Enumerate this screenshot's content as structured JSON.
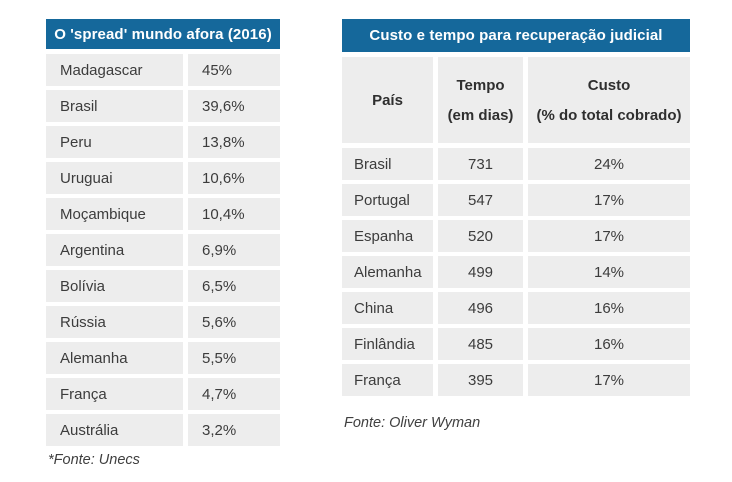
{
  "colors": {
    "header_background": "#15689b",
    "header_text": "#ffffff",
    "row_background": "#ededed",
    "body_text": "#3c3c3c",
    "page_background": "#ffffff"
  },
  "left_table": {
    "title": "O 'spread' mundo afora (2016)",
    "rows": [
      {
        "country": "Madagascar",
        "value": "45%"
      },
      {
        "country": "Brasil",
        "value": "39,6%"
      },
      {
        "country": "Peru",
        "value": "13,8%"
      },
      {
        "country": "Uruguai",
        "value": "10,6%"
      },
      {
        "country": "Moçambique",
        "value": "10,4%"
      },
      {
        "country": "Argentina",
        "value": "6,9%"
      },
      {
        "country": "Bolívia",
        "value": "6,5%"
      },
      {
        "country": "Rússia",
        "value": "5,6%"
      },
      {
        "country": "Alemanha",
        "value": "5,5%"
      },
      {
        "country": "França",
        "value": "4,7%"
      },
      {
        "country": "Austrália",
        "value": "3,2%"
      }
    ],
    "source": "*Fonte: Unecs"
  },
  "right_table": {
    "title": "Custo e tempo para recuperação judicial",
    "columns": {
      "country_header": "País",
      "time_header_line1": "Tempo",
      "time_header_line2": "(em dias)",
      "cost_header_line1": "Custo",
      "cost_header_line2": "(% do total cobrado)"
    },
    "rows": [
      {
        "country": "Brasil",
        "time": "731",
        "cost": "24%"
      },
      {
        "country": "Portugal",
        "time": "547",
        "cost": "17%"
      },
      {
        "country": "Espanha",
        "time": "520",
        "cost": "17%"
      },
      {
        "country": "Alemanha",
        "time": "499",
        "cost": "14%"
      },
      {
        "country": "China",
        "time": "496",
        "cost": "16%"
      },
      {
        "country": "Finlândia",
        "time": "485",
        "cost": "16%"
      },
      {
        "country": "França",
        "time": "395",
        "cost": "17%"
      }
    ],
    "source": "Fonte: Oliver Wyman"
  },
  "chart_data": [
    {
      "type": "table",
      "title": "O 'spread' mundo afora (2016)",
      "categories": [
        "Madagascar",
        "Brasil",
        "Peru",
        "Uruguai",
        "Moçambique",
        "Argentina",
        "Bolívia",
        "Rússia",
        "Alemanha",
        "França",
        "Austrália"
      ],
      "values": [
        45,
        39.6,
        13.8,
        10.6,
        10.4,
        6.9,
        6.5,
        5.6,
        5.5,
        4.7,
        3.2
      ],
      "value_unit": "%",
      "source": "*Fonte: Unecs"
    },
    {
      "type": "table",
      "title": "Custo e tempo para recuperação judicial",
      "columns": [
        "País",
        "Tempo (em dias)",
        "Custo (% do total cobrado)"
      ],
      "categories": [
        "Brasil",
        "Portugal",
        "Espanha",
        "Alemanha",
        "China",
        "Finlândia",
        "França"
      ],
      "series": [
        {
          "name": "Tempo (em dias)",
          "values": [
            731,
            547,
            520,
            499,
            496,
            485,
            395
          ]
        },
        {
          "name": "Custo (% do total cobrado)",
          "values": [
            24,
            17,
            17,
            14,
            16,
            16,
            17
          ]
        }
      ],
      "source": "Fonte: Oliver Wyman"
    }
  ]
}
